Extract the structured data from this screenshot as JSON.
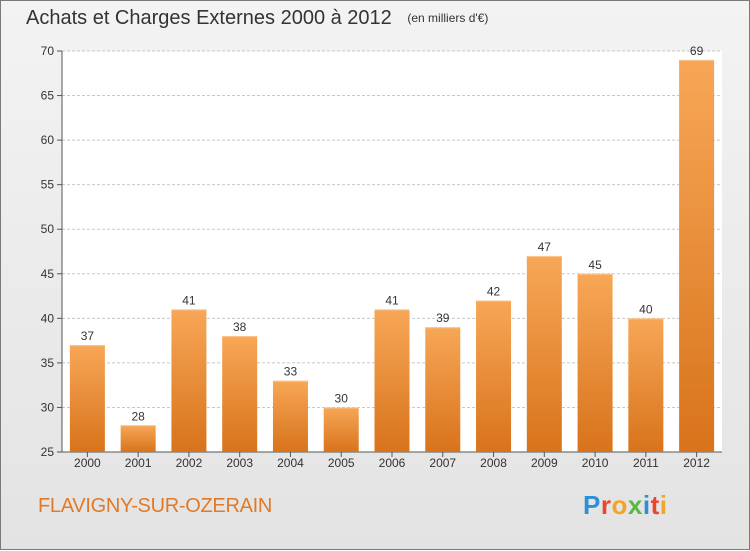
{
  "title": "Achats et Charges Externes 2000 à 2012",
  "unit": "(en milliers d'€)",
  "place_name": "FLAVIGNY-SUR-OZERAIN",
  "logo": {
    "text": "Proxiti",
    "letter_colors": [
      "#2e8fd6",
      "#e8462e",
      "#f2a42a",
      "#58b947",
      "#2e8fd6",
      "#e8462e",
      "#f2a42a"
    ]
  },
  "colors": {
    "bar_light": "#f7a757",
    "bar_dark": "#d8731b",
    "grid": "#c8c8c8",
    "text": "#333333",
    "place": "#e07a28"
  },
  "chart_data": {
    "type": "bar",
    "categories": [
      "2000",
      "2001",
      "2002",
      "2003",
      "2004",
      "2005",
      "2006",
      "2007",
      "2008",
      "2009",
      "2010",
      "2011",
      "2012"
    ],
    "values": [
      37,
      28,
      41,
      38,
      33,
      30,
      41,
      39,
      42,
      47,
      45,
      40,
      69
    ],
    "ylim": [
      25,
      70
    ],
    "yticks": [
      25,
      30,
      35,
      40,
      45,
      50,
      55,
      60,
      65,
      70
    ],
    "grid": true,
    "title": "Achats et Charges Externes 2000 à 2012"
  }
}
